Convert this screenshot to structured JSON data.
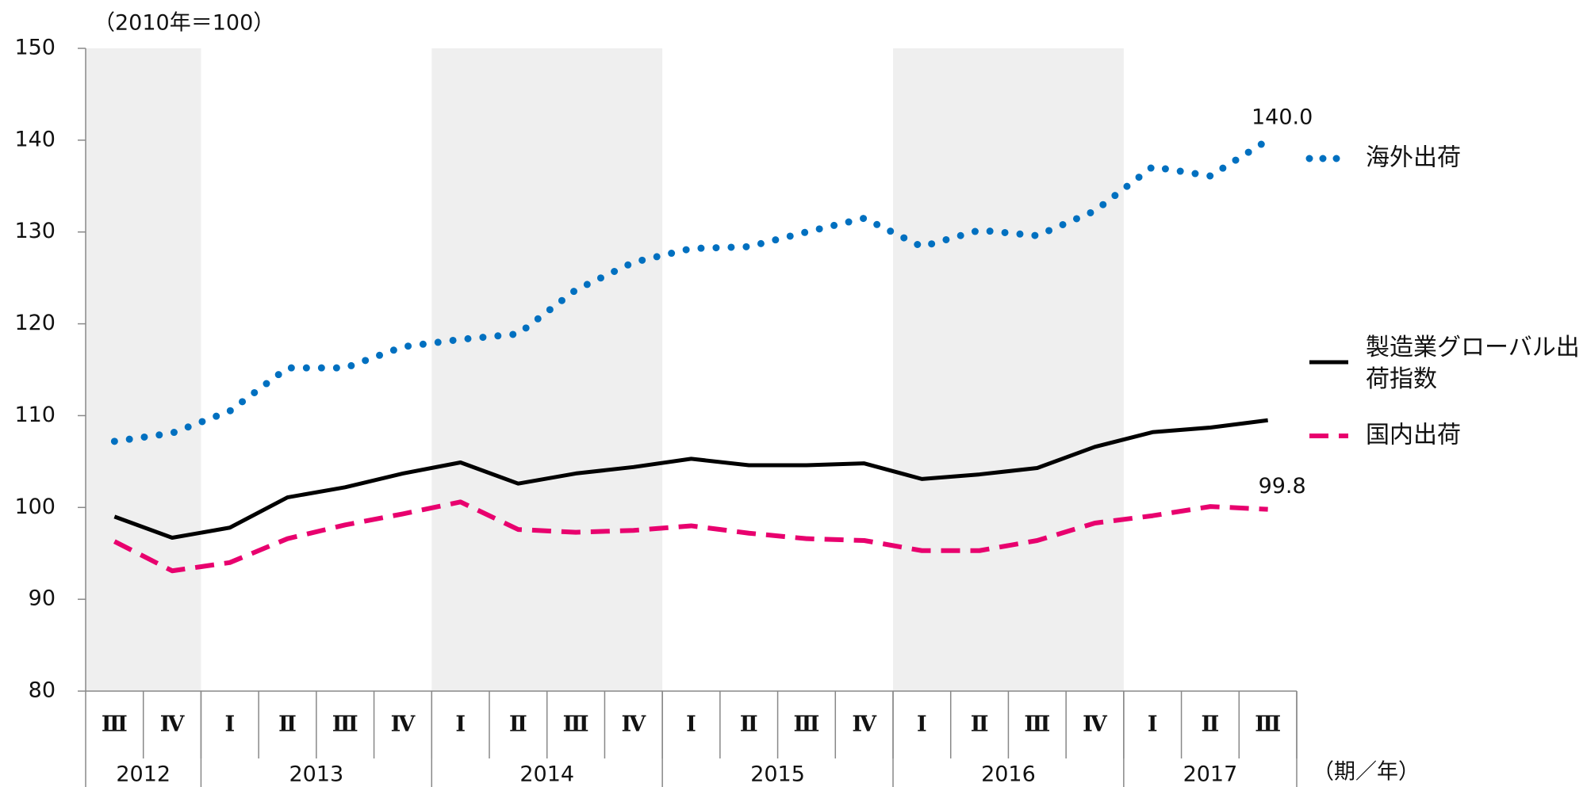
{
  "chart_data": {
    "type": "line",
    "y_unit": "（2010年＝100）",
    "x_unit": "（期／年）",
    "categories": [
      "Ⅲ",
      "Ⅳ",
      "Ⅰ",
      "Ⅱ",
      "Ⅲ",
      "Ⅳ",
      "Ⅰ",
      "Ⅱ",
      "Ⅲ",
      "Ⅳ",
      "Ⅰ",
      "Ⅱ",
      "Ⅲ",
      "Ⅳ",
      "Ⅰ",
      "Ⅱ",
      "Ⅲ",
      "Ⅳ",
      "Ⅰ",
      "Ⅱ",
      "Ⅲ"
    ],
    "year_groups": [
      {
        "label": "2012",
        "quarters": 2,
        "shaded": true
      },
      {
        "label": "2013",
        "quarters": 4,
        "shaded": false
      },
      {
        "label": "2014",
        "quarters": 4,
        "shaded": true
      },
      {
        "label": "2015",
        "quarters": 4,
        "shaded": false
      },
      {
        "label": "2016",
        "quarters": 4,
        "shaded": true
      },
      {
        "label": "2017",
        "quarters": 3,
        "shaded": false
      }
    ],
    "ylim": [
      80,
      150
    ],
    "yticks": [
      80,
      90,
      100,
      110,
      120,
      130,
      140,
      150
    ],
    "series": [
      {
        "name": "海外出荷",
        "color": "#0070c0",
        "style": "dotted",
        "values": [
          107.2,
          108.1,
          110.5,
          115.2,
          115.2,
          117.5,
          118.3,
          118.9,
          123.7,
          126.7,
          128.2,
          128.4,
          130.0,
          131.5,
          128.4,
          130.2,
          129.6,
          132.3,
          137.1,
          136.1,
          140.0
        ],
        "value_labels": [
          null,
          null,
          null,
          null,
          null,
          null,
          null,
          null,
          null,
          null,
          null,
          null,
          null,
          null,
          null,
          null,
          null,
          null,
          null,
          null,
          "140.0"
        ]
      },
      {
        "name": "製造業グローバル出荷指数",
        "color": "#000000",
        "style": "solid",
        "values": [
          99.0,
          96.7,
          97.8,
          101.1,
          102.2,
          103.7,
          104.9,
          102.6,
          103.7,
          104.4,
          105.3,
          104.6,
          104.6,
          104.8,
          103.1,
          103.6,
          104.3,
          106.6,
          108.2,
          108.7,
          109.5
        ]
      },
      {
        "name": "国内出荷",
        "color": "#e8006e",
        "style": "dashed",
        "values": [
          96.3,
          93.1,
          94.0,
          96.6,
          98.1,
          99.3,
          100.6,
          97.6,
          97.3,
          97.5,
          98.0,
          97.2,
          96.6,
          96.4,
          95.3,
          95.3,
          96.4,
          98.3,
          99.1,
          100.1,
          99.8
        ],
        "value_labels": [
          null,
          null,
          null,
          null,
          null,
          null,
          null,
          null,
          null,
          null,
          null,
          null,
          null,
          null,
          null,
          null,
          null,
          null,
          null,
          null,
          "99.8"
        ]
      }
    ]
  }
}
